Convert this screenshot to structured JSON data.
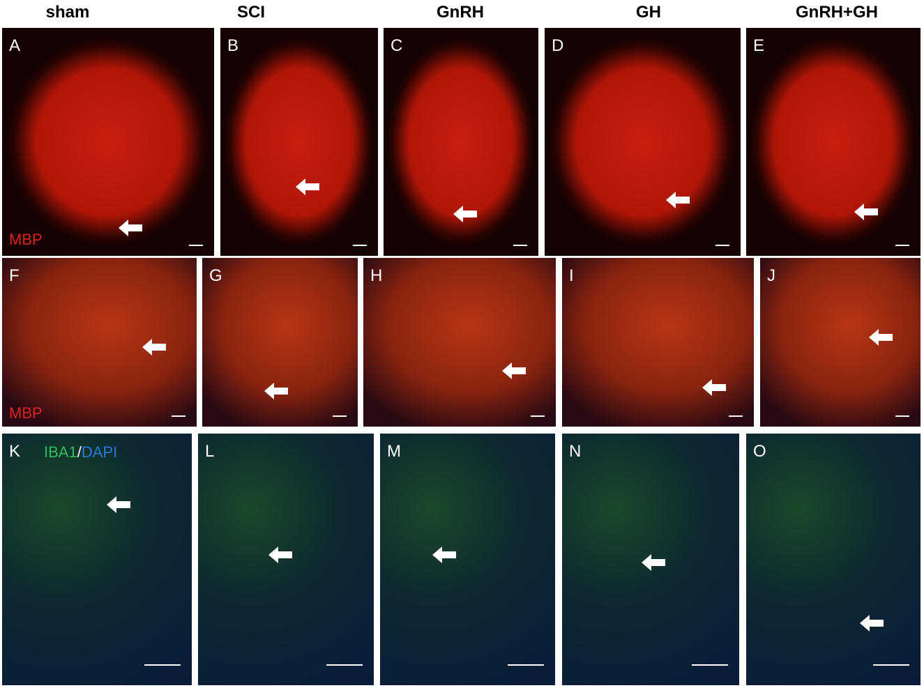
{
  "columns": [
    "sham",
    "SCI",
    "GnRH",
    "GH",
    "GnRH+GH"
  ],
  "rows": [
    {
      "panels": [
        "A",
        "B",
        "C",
        "D",
        "E"
      ],
      "stain": "MBP"
    },
    {
      "panels": [
        "F",
        "G",
        "H",
        "I",
        "J"
      ],
      "stain": "MBP"
    },
    {
      "panels": [
        "K",
        "L",
        "M",
        "N",
        "O"
      ],
      "stain": [
        "IBA1",
        "/",
        "DAPI"
      ]
    }
  ]
}
